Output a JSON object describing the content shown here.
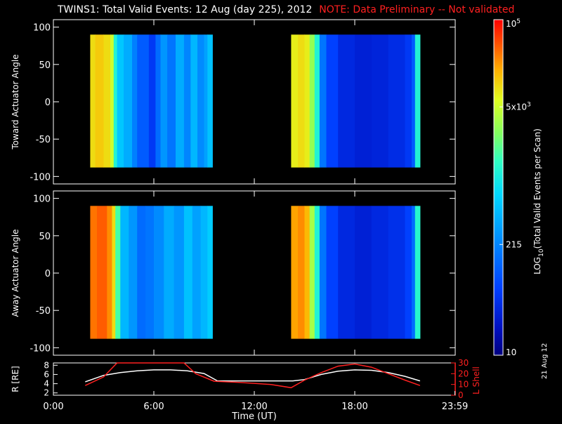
{
  "header": {
    "title": "TWINS1: Total Valid Events: 12 Aug (day 225), 2012",
    "note": "NOTE: Data Preliminary -- Not validated"
  },
  "side_date": "21 Aug 12",
  "colors": {
    "background": "#000000",
    "axis": "#ffffff",
    "note": "#ff2020",
    "r_line": "#ffffff",
    "lshell_line": "#ff2020"
  },
  "chart_data": [
    {
      "type": "heatmap",
      "name": "toward",
      "ylabel": "Toward Actuator Angle",
      "ylim": [
        -110,
        110
      ],
      "yticks": [
        "100",
        "50",
        "0",
        "-50",
        "-100"
      ],
      "ytick_values": [
        100,
        50,
        0,
        -50,
        -100
      ],
      "xlim": [
        0,
        24
      ],
      "data_range": {
        "y": [
          -88,
          90
        ]
      },
      "segments": [
        {
          "x": [
            2.2,
            9.5
          ],
          "profile": [
            {
              "x": 2.2,
              "v": 0.8
            },
            {
              "x": 2.5,
              "v": 0.82
            },
            {
              "x": 3.0,
              "v": 0.8
            },
            {
              "x": 3.4,
              "v": 0.74
            },
            {
              "x": 3.6,
              "v": 0.55
            },
            {
              "x": 3.8,
              "v": 0.45
            },
            {
              "x": 4.2,
              "v": 0.4
            },
            {
              "x": 4.7,
              "v": 0.32
            },
            {
              "x": 5.0,
              "v": 0.25
            },
            {
              "x": 5.7,
              "v": 0.18
            },
            {
              "x": 6.1,
              "v": 0.28
            },
            {
              "x": 6.4,
              "v": 0.36
            },
            {
              "x": 6.8,
              "v": 0.3
            },
            {
              "x": 7.3,
              "v": 0.4
            },
            {
              "x": 7.8,
              "v": 0.33
            },
            {
              "x": 8.2,
              "v": 0.42
            },
            {
              "x": 8.6,
              "v": 0.34
            },
            {
              "x": 9.0,
              "v": 0.38
            },
            {
              "x": 9.2,
              "v": 0.44
            },
            {
              "x": 9.5,
              "v": 0.4
            }
          ]
        },
        {
          "x": 14.2,
          "x_end": 21.9,
          "profile": [
            {
              "x": 14.2,
              "v": 0.78
            },
            {
              "x": 14.6,
              "v": 0.8
            },
            {
              "x": 15.0,
              "v": 0.78
            },
            {
              "x": 15.3,
              "v": 0.68
            },
            {
              "x": 15.6,
              "v": 0.55
            },
            {
              "x": 15.9,
              "v": 0.3
            },
            {
              "x": 16.3,
              "v": 0.2
            },
            {
              "x": 17.0,
              "v": 0.14
            },
            {
              "x": 18.0,
              "v": 0.12
            },
            {
              "x": 19.0,
              "v": 0.13
            },
            {
              "x": 20.0,
              "v": 0.15
            },
            {
              "x": 21.0,
              "v": 0.18
            },
            {
              "x": 21.4,
              "v": 0.25
            },
            {
              "x": 21.6,
              "v": 0.55
            },
            {
              "x": 21.9,
              "v": 0.58
            }
          ]
        }
      ]
    },
    {
      "type": "heatmap",
      "name": "away",
      "ylabel": "Away Actuator Angle",
      "ylim": [
        -110,
        110
      ],
      "yticks": [
        "100",
        "50",
        "0",
        "-50",
        "-100"
      ],
      "ytick_values": [
        100,
        50,
        0,
        -50,
        -100
      ],
      "xlim": [
        0,
        24
      ],
      "data_range": {
        "y": [
          -88,
          90
        ]
      },
      "segments": [
        {
          "x": [
            2.2,
            9.5
          ],
          "profile": [
            {
              "x": 2.2,
              "v": 0.9
            },
            {
              "x": 2.6,
              "v": 0.92
            },
            {
              "x": 3.2,
              "v": 0.88
            },
            {
              "x": 3.5,
              "v": 0.8
            },
            {
              "x": 3.7,
              "v": 0.6
            },
            {
              "x": 4.0,
              "v": 0.42
            },
            {
              "x": 4.5,
              "v": 0.36
            },
            {
              "x": 5.0,
              "v": 0.28
            },
            {
              "x": 5.5,
              "v": 0.3
            },
            {
              "x": 6.0,
              "v": 0.34
            },
            {
              "x": 6.6,
              "v": 0.4
            },
            {
              "x": 7.2,
              "v": 0.36
            },
            {
              "x": 7.8,
              "v": 0.44
            },
            {
              "x": 8.3,
              "v": 0.38
            },
            {
              "x": 8.8,
              "v": 0.42
            },
            {
              "x": 9.2,
              "v": 0.46
            },
            {
              "x": 9.5,
              "v": 0.44
            }
          ]
        },
        {
          "x": 14.2,
          "x_end": 21.9,
          "profile": [
            {
              "x": 14.2,
              "v": 0.86
            },
            {
              "x": 14.6,
              "v": 0.88
            },
            {
              "x": 15.0,
              "v": 0.84
            },
            {
              "x": 15.3,
              "v": 0.7
            },
            {
              "x": 15.6,
              "v": 0.55
            },
            {
              "x": 15.9,
              "v": 0.3
            },
            {
              "x": 16.3,
              "v": 0.2
            },
            {
              "x": 17.0,
              "v": 0.14
            },
            {
              "x": 18.0,
              "v": 0.12
            },
            {
              "x": 19.0,
              "v": 0.14
            },
            {
              "x": 20.0,
              "v": 0.16
            },
            {
              "x": 21.0,
              "v": 0.2
            },
            {
              "x": 21.4,
              "v": 0.28
            },
            {
              "x": 21.6,
              "v": 0.56
            },
            {
              "x": 21.9,
              "v": 0.58
            }
          ]
        }
      ]
    },
    {
      "type": "line",
      "name": "ephemeris",
      "ylabel": "R [RE]",
      "ylabel_right": "L Shell",
      "xlabel": "Time (UT)",
      "xlim": [
        0,
        24
      ],
      "xticks": [
        "0:00",
        "6:00",
        "12:00",
        "18:00",
        "23:59"
      ],
      "xtick_values": [
        0,
        6,
        12,
        18,
        23.98
      ],
      "ylim_left": [
        1.5,
        8.5
      ],
      "yticks_left": [
        "8",
        "6",
        "4",
        "2"
      ],
      "ytick_values_left": [
        8,
        6,
        4,
        2
      ],
      "ylim_right": [
        0,
        30
      ],
      "yticks_right": [
        "30",
        "20",
        "10",
        "0"
      ],
      "ytick_values_right": [
        30,
        20,
        10,
        0
      ],
      "series": [
        {
          "name": "R",
          "axis": "left",
          "color": "#ffffff",
          "x": [
            1.9,
            3,
            4,
            5,
            6,
            7,
            8,
            9,
            9.8,
            11,
            12,
            13,
            14,
            14.3,
            15,
            16,
            17,
            18,
            19,
            20,
            21,
            21.9
          ],
          "y": [
            4.4,
            5.8,
            6.4,
            6.8,
            7.0,
            7.0,
            6.8,
            6.2,
            4.6,
            4.6,
            4.6,
            4.6,
            4.6,
            4.6,
            4.9,
            6.0,
            6.7,
            7.0,
            6.9,
            6.4,
            5.6,
            4.6
          ]
        },
        {
          "name": "L Shell",
          "axis": "right",
          "color": "#ff2020",
          "x": [
            1.9,
            3,
            3.8,
            7.8,
            8.5,
            9.6,
            11,
            12,
            13,
            14.2,
            15,
            16,
            17,
            18,
            19,
            20,
            21,
            21.9
          ],
          "y": [
            9,
            17,
            30,
            30,
            20,
            13,
            12,
            11,
            10,
            7,
            14,
            21,
            27,
            29,
            26,
            20,
            14,
            9
          ]
        }
      ]
    }
  ],
  "colorbar": {
    "label": "LOG10(Total Valid Events per Scan)",
    "label_main": "LOG",
    "label_sub": "10",
    "label_rest": "(Total Valid Events per Scan)",
    "ticks": [
      {
        "base": "10",
        "exp": "5",
        "value": 1.0
      },
      {
        "base": "5x10",
        "exp": "3",
        "value": 0.74
      },
      {
        "base": "215",
        "exp": "",
        "value": 0.33
      },
      {
        "base": "10",
        "exp": "",
        "value": 0.0
      }
    ]
  }
}
